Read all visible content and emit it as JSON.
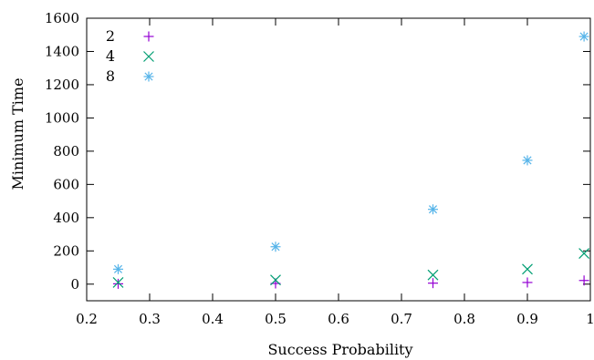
{
  "chart_data": {
    "type": "scatter",
    "title": "",
    "xlabel": "Success Probability",
    "ylabel": "Minimum Time",
    "xlim": [
      0.2,
      1.0
    ],
    "ylim": [
      -100,
      1600
    ],
    "xticks": [
      0.2,
      0.3,
      0.4,
      0.5,
      0.6,
      0.7,
      0.8,
      0.9,
      1.0
    ],
    "xtick_labels": [
      "0.2",
      "0.3",
      "0.4",
      "0.5",
      "0.6",
      "0.7",
      "0.8",
      "0.9",
      "1"
    ],
    "yticks": [
      0,
      200,
      400,
      600,
      800,
      1000,
      1200,
      1400,
      1600
    ],
    "ytick_labels": [
      "0",
      "200",
      "400",
      "600",
      "800",
      "1000",
      "1200",
      "1400",
      "1600"
    ],
    "grid": false,
    "legend_position": "top-left",
    "series": [
      {
        "name": "2",
        "marker": "plus",
        "color": "#9400d3",
        "x": [
          0.25,
          0.5,
          0.75,
          0.9,
          0.99
        ],
        "y": [
          2,
          4,
          6,
          10,
          22
        ]
      },
      {
        "name": "4",
        "marker": "cross",
        "color": "#009e73",
        "x": [
          0.25,
          0.5,
          0.75,
          0.9,
          0.99
        ],
        "y": [
          10,
          25,
          55,
          90,
          185
        ]
      },
      {
        "name": "8",
        "marker": "star",
        "color": "#56b4e9",
        "x": [
          0.25,
          0.5,
          0.75,
          0.9,
          0.99
        ],
        "y": [
          90,
          225,
          450,
          745,
          1490
        ]
      }
    ]
  }
}
